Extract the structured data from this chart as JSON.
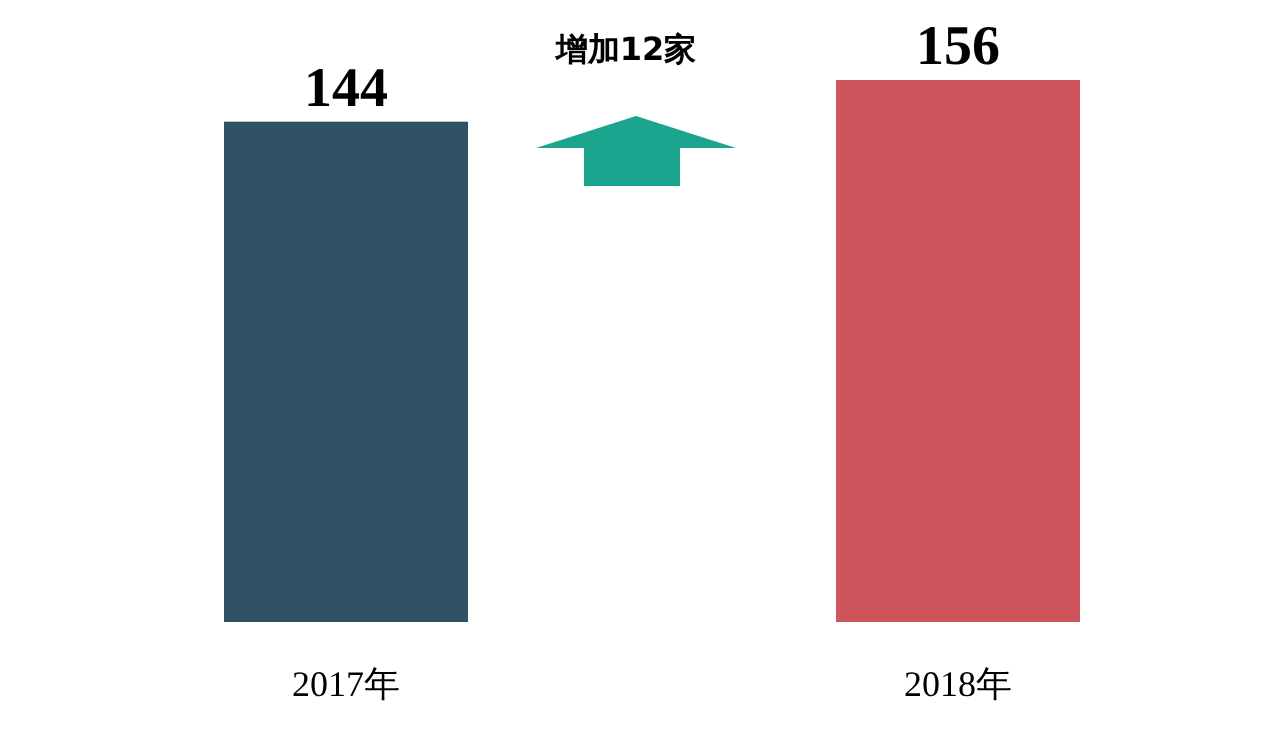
{
  "chart_data": {
    "type": "bar",
    "categories": [
      "2017年",
      "2018年"
    ],
    "values": [
      144,
      156
    ],
    "colors": [
      "#2f5264",
      "#cf545b"
    ],
    "data_labels": true,
    "annotations": [
      "增加12家"
    ]
  }
}
